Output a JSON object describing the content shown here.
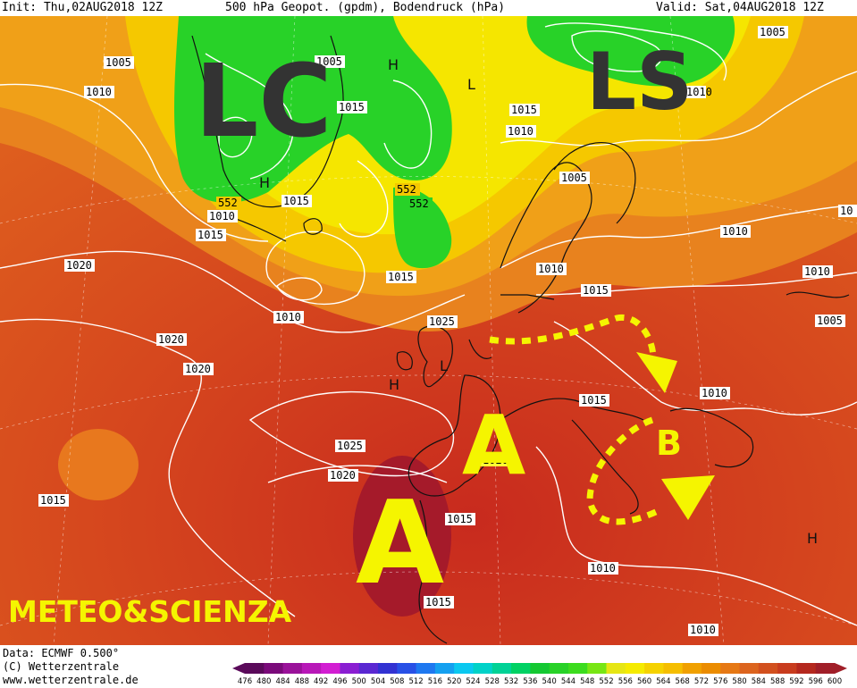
{
  "header": {
    "init": "Init: Thu,02AUG2018 12Z",
    "title": "500 hPa Geopot. (gpdm), Bodendruck (hPa)",
    "valid": "Valid: Sat,04AUG2018 12Z"
  },
  "annotations": {
    "lc": "LC",
    "ls": "LS",
    "a_large": "A",
    "a_small": "A",
    "b": "B",
    "brand": "METEO&SCIENZA"
  },
  "isobar_labels": [
    "1005",
    "1005",
    "1010",
    "1005",
    "1010",
    "1015",
    "1010",
    "1015",
    "1010",
    "1015",
    "1005",
    "552",
    "552",
    "552",
    "1020",
    "1015",
    "1010",
    "1025",
    "1020",
    "1020",
    "1025",
    "1020",
    "1015",
    "1015",
    "1015",
    "1015",
    "1010",
    "1010",
    "1015",
    "1015",
    "1005",
    "1010",
    "1010",
    "1010",
    "1020",
    "1010",
    "10"
  ],
  "pressure_marks": [
    "H",
    "H",
    "L",
    "L",
    "H",
    "H"
  ],
  "footer": {
    "data": "Data: ECMWF  0.500°",
    "copyright": "(C) Wetterzentrale",
    "url": "www.wetterzentrale.de"
  },
  "colorbar": {
    "ticks": [
      "476",
      "480",
      "484",
      "488",
      "492",
      "496",
      "500",
      "504",
      "508",
      "512",
      "516",
      "520",
      "524",
      "528",
      "532",
      "536",
      "540",
      "544",
      "548",
      "552",
      "556",
      "560",
      "564",
      "568",
      "572",
      "576",
      "580",
      "584",
      "588",
      "592",
      "596",
      "600"
    ],
    "colors": [
      "#5a0a5a",
      "#7a0a7a",
      "#9a129a",
      "#b818b8",
      "#d21ed2",
      "#8a1ed2",
      "#5a28d2",
      "#3232d2",
      "#2850e6",
      "#1e78f0",
      "#14a0f0",
      "#0ac8f0",
      "#00d2c8",
      "#00d296",
      "#00d264",
      "#14c832",
      "#28d228",
      "#3cdc1e",
      "#78e614",
      "#e6e614",
      "#f5eb00",
      "#f5d200",
      "#f5be00",
      "#f0a000",
      "#eb8c00",
      "#e67814",
      "#dc641e",
      "#d2501e",
      "#c83c1e",
      "#b4281e",
      "#a01e28"
    ]
  }
}
